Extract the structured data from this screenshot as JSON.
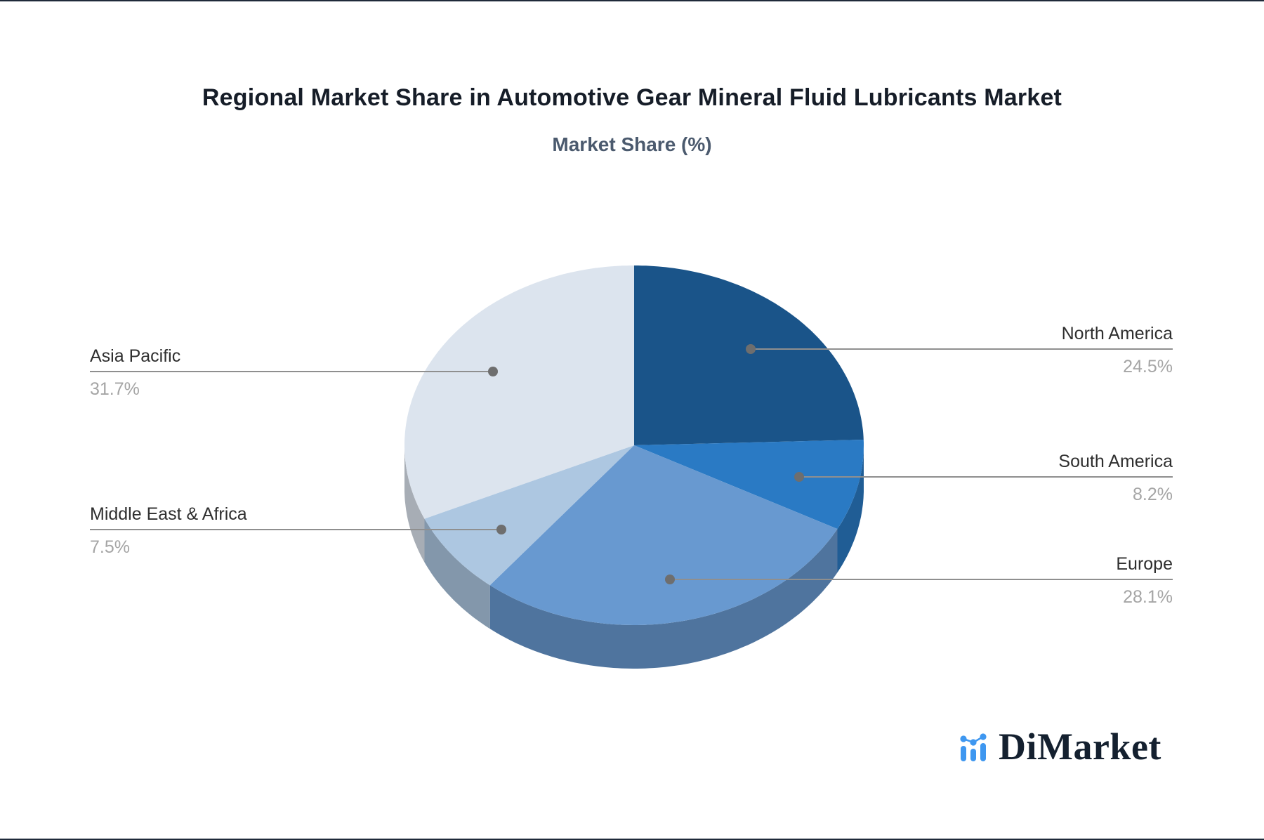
{
  "header": {
    "title": "Regional Market Share in Automotive Gear Mineral Fluid Lubricants Market",
    "subtitle": "Market Share (%)",
    "title_color": "#161d28",
    "subtitle_color": "#4b5a6e"
  },
  "chart_data": {
    "type": "pie",
    "style": "3d",
    "title": "Regional Market Share in Automotive Gear Mineral Fluid Lubricants Market",
    "subtitle": "Market Share (%)",
    "unit": "%",
    "direction": "clockwise",
    "start_angle": "12-o-clock",
    "legend_position": "none",
    "label_style": "leader-lines",
    "slices": [
      {
        "label": "North America",
        "value": 24.5,
        "display": "24.5%",
        "color": "#1a5489"
      },
      {
        "label": "South America",
        "value": 8.2,
        "display": "8.2%",
        "color": "#2a7ac4"
      },
      {
        "label": "Europe",
        "value": 28.1,
        "display": "28.1%",
        "color": "#6899d0"
      },
      {
        "label": "Middle East & Africa",
        "value": 7.5,
        "display": "7.5%",
        "color": "#adc7e1"
      },
      {
        "label": "Asia Pacific",
        "value": 31.7,
        "display": "31.7%",
        "color": "#dce4ee"
      }
    ]
  },
  "colors": {
    "leader_line": "#8f8f8f",
    "leader_dot": "#6e6e6e",
    "label_text": "#2f2f2f",
    "value_text": "#a5a5a5",
    "page_edge": "#1f2a3a"
  },
  "branding": {
    "logo_text": "DiMarket",
    "logo_icon": "bar-chart-trend-icon",
    "logo_accent": "#3e97f0",
    "logo_text_color": "#14202f"
  }
}
